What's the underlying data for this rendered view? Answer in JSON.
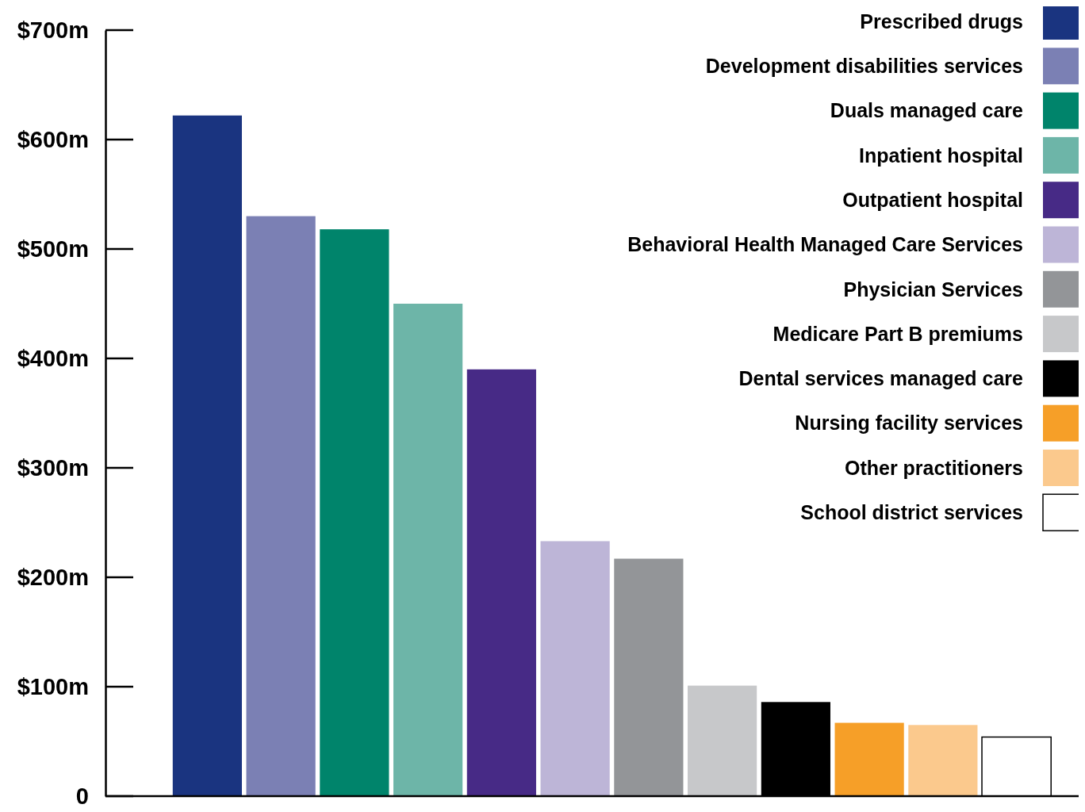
{
  "chart_data": {
    "type": "bar",
    "stacked": true,
    "legend": "top right",
    "categories": [
      null,
      null,
      null,
      null,
      null,
      null,
      null,
      null,
      null,
      null,
      null,
      null
    ],
    "ylim": [
      0,
      700
    ],
    "yticks": [
      {
        "value": 0,
        "label": "0"
      },
      {
        "value": 100,
        "label": "$100m"
      },
      {
        "value": 200,
        "label": "$200m"
      },
      {
        "value": 300,
        "label": "$300m"
      },
      {
        "value": 400,
        "label": "$400m"
      },
      {
        "value": 500,
        "label": "$500m"
      },
      {
        "value": 600,
        "label": "$600m"
      },
      {
        "value": 700,
        "label": "$700m"
      }
    ],
    "series": [
      {
        "name": "Prescribed drugs",
        "color": "#1a3480",
        "values": [
          622,
          null,
          null,
          null,
          null,
          null,
          null,
          null,
          null,
          null,
          null,
          null
        ]
      },
      {
        "name": "Development disabilities services",
        "color": "#7b80b4",
        "values": [
          null,
          530,
          null,
          null,
          null,
          null,
          null,
          null,
          null,
          null,
          null,
          null
        ]
      },
      {
        "name": "Duals managed care",
        "color": "#00846b",
        "values": [
          null,
          null,
          518,
          null,
          null,
          null,
          null,
          null,
          null,
          null,
          null,
          null
        ]
      },
      {
        "name": "Inpatient hospital",
        "color": "#6db5a8",
        "values": [
          null,
          null,
          null,
          450,
          null,
          null,
          null,
          null,
          null,
          null,
          null,
          null
        ]
      },
      {
        "name": "Outpatient hospital",
        "color": "#472a86",
        "values": [
          null,
          null,
          null,
          null,
          390,
          null,
          null,
          null,
          null,
          null,
          null,
          null
        ]
      },
      {
        "name": "Behavioral Health Managed Care Services",
        "color": "#bdb5d7",
        "values": [
          null,
          null,
          null,
          null,
          null,
          233,
          null,
          null,
          null,
          null,
          null,
          null
        ]
      },
      {
        "name": "Physician Services",
        "color": "#939598",
        "values": [
          null,
          null,
          null,
          null,
          null,
          null,
          217,
          null,
          null,
          null,
          null,
          null
        ]
      },
      {
        "name": "Medicare Part B premiums",
        "color": "#c7c8ca",
        "values": [
          null,
          null,
          null,
          null,
          null,
          null,
          null,
          101,
          null,
          null,
          null,
          null
        ]
      },
      {
        "name": "Dental services managed care",
        "color": "#000000",
        "values": [
          null,
          null,
          null,
          null,
          null,
          null,
          null,
          null,
          86,
          null,
          null,
          null
        ]
      },
      {
        "name": "Nursing facility services",
        "color": "#f69f28",
        "values": [
          null,
          null,
          null,
          null,
          null,
          null,
          null,
          null,
          null,
          67,
          null,
          null
        ]
      },
      {
        "name": "Other practitioners",
        "color": "#fbc98d",
        "values": [
          null,
          null,
          null,
          null,
          null,
          null,
          null,
          null,
          null,
          null,
          65,
          null
        ]
      },
      {
        "name": "School district services",
        "color": "#ffffff",
        "values": [
          null,
          null,
          null,
          null,
          null,
          null,
          null,
          null,
          null,
          null,
          null,
          54
        ]
      }
    ]
  }
}
